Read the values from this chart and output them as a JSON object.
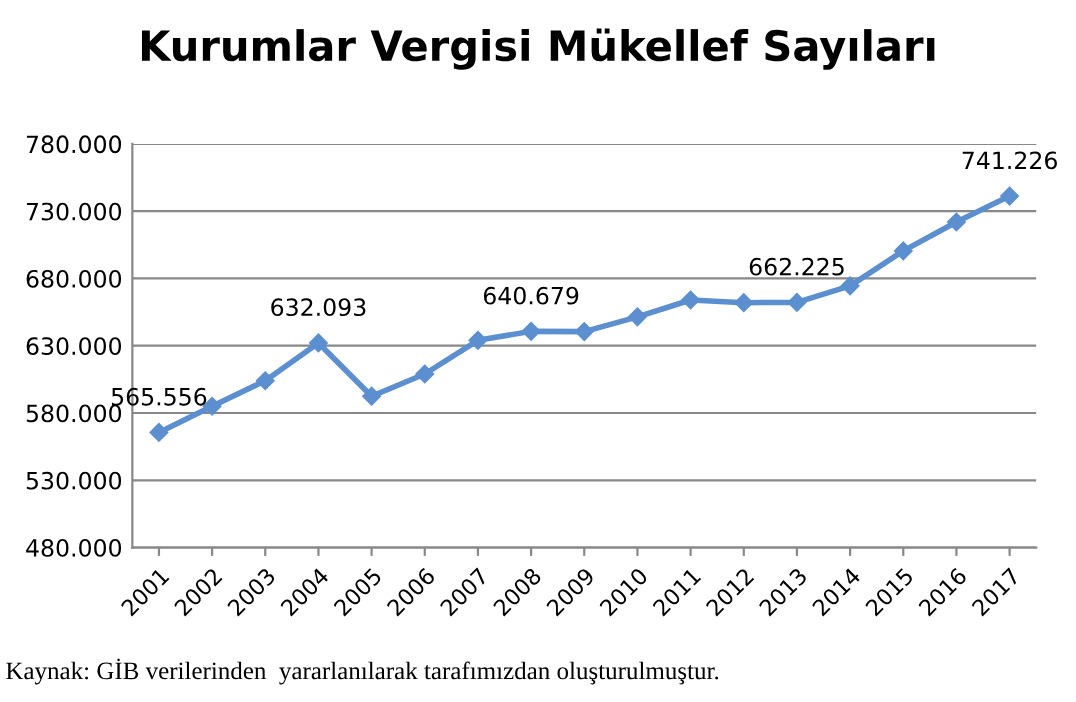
{
  "chart_data": {
    "type": "line",
    "title": "Kurumlar Vergisi Mükellef Sayıları",
    "categories": [
      "2001",
      "2002",
      "2003",
      "2004",
      "2005",
      "2006",
      "2007",
      "2008",
      "2009",
      "2010",
      "2011",
      "2012",
      "2013",
      "2014",
      "2015",
      "2016",
      "2017"
    ],
    "series": [
      {
        "color": "#5b8fd0",
        "values": [
          565556,
          585000,
          604000,
          632093,
          592500,
          609000,
          634000,
          640679,
          640500,
          651500,
          664000,
          662000,
          662225,
          674500,
          700500,
          722000,
          741226
        ],
        "value_labels": [
          "565.556",
          null,
          null,
          "632.093",
          null,
          null,
          null,
          "640.679",
          null,
          null,
          null,
          null,
          "662.225",
          null,
          null,
          null,
          "741.226"
        ]
      }
    ],
    "ylim": [
      480000,
      780000
    ],
    "yticks": [
      {
        "value": 480000,
        "label": "480.000"
      },
      {
        "value": 530000,
        "label": "530.000"
      },
      {
        "value": 580000,
        "label": "580.000"
      },
      {
        "value": 630000,
        "label": "630.000"
      },
      {
        "value": 680000,
        "label": "680.000"
      },
      {
        "value": 730000,
        "label": "730.000"
      },
      {
        "value": 780000,
        "label": "780.000"
      }
    ],
    "grid": "y",
    "marker": "diamond",
    "line_style": "solid",
    "annotations": [
      "Kaynak: GİB verilerinden  yararlanılarak tarafımızdan oluşturulmuştur."
    ]
  }
}
